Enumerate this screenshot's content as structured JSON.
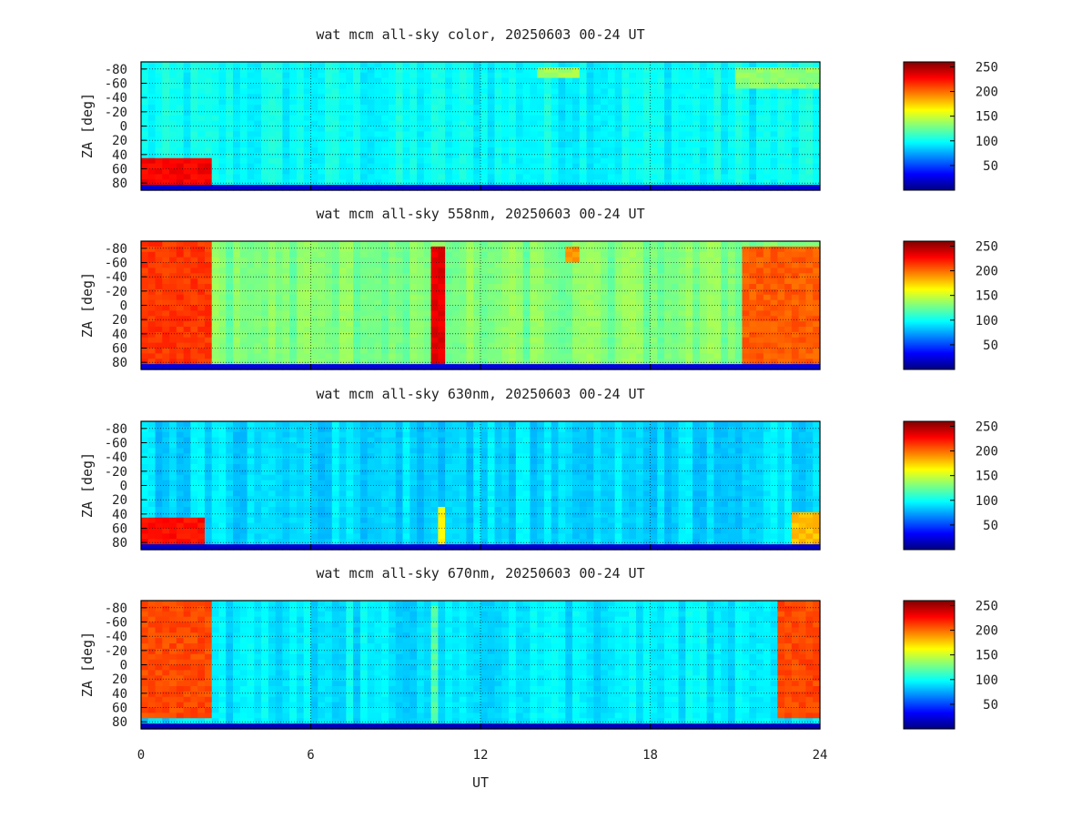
{
  "colormap": [
    "#00007f",
    "#0000ff",
    "#007fff",
    "#00ffff",
    "#7fff7f",
    "#ffff00",
    "#ff7f00",
    "#ff0000",
    "#7f0000"
  ],
  "chart_data": {
    "type": "heatmap",
    "xlabel": "UT",
    "ylabel": "ZA [deg]",
    "x_ticks": [
      "0",
      "6",
      "12",
      "18",
      "24"
    ],
    "xlim": [
      0,
      24
    ],
    "ylim": [
      -90,
      90
    ],
    "y_ticks": [
      "-80",
      "-60",
      "-40",
      "-20",
      "0",
      "20",
      "40",
      "60",
      "80"
    ],
    "colorbar_ticks": [
      "250",
      "200",
      "150",
      "100",
      "50"
    ],
    "clim": [
      0,
      260
    ],
    "grid": true,
    "panels": [
      {
        "title": "wat mcm all-sky color, 20250603 00-24 UT",
        "base": 98,
        "edge_dark": 20,
        "hotspots": [
          {
            "t": [
              0,
              2.4
            ],
            "za": [
              48,
              80
            ],
            "v": 235
          },
          {
            "t": [
              21,
              24
            ],
            "za": [
              -86,
              -50
            ],
            "v": 140
          },
          {
            "t": [
              14,
              15.6
            ],
            "za": [
              -86,
              -70
            ],
            "v": 145
          }
        ]
      },
      {
        "title": "wat mcm all-sky 558nm, 20250603 00-24 UT",
        "base": 130,
        "edge_dark": 25,
        "hotspots": [
          {
            "t": [
              0,
              2.6
            ],
            "za": [
              -90,
              90
            ],
            "v": 220
          },
          {
            "t": [
              10.3,
              10.7
            ],
            "za": [
              -85,
              80
            ],
            "v": 240
          },
          {
            "t": [
              21.3,
              24
            ],
            "za": [
              -86,
              80
            ],
            "v": 210
          },
          {
            "t": [
              15.1,
              15.6
            ],
            "za": [
              -85,
              -60
            ],
            "v": 195
          }
        ]
      },
      {
        "title": "wat mcm all-sky 630nm, 20250603 00-24 UT",
        "base": 88,
        "edge_dark": 20,
        "hotspots": [
          {
            "t": [
              0,
              2.3
            ],
            "za": [
              48,
              80
            ],
            "v": 230
          },
          {
            "t": [
              10.4,
              10.7
            ],
            "za": [
              30,
              80
            ],
            "v": 170
          },
          {
            "t": [
              23,
              24
            ],
            "za": [
              40,
              80
            ],
            "v": 185
          }
        ]
      },
      {
        "title": "wat mcm all-sky 670nm, 20250603 00-24 UT",
        "base": 92,
        "edge_dark": 15,
        "hotspots": [
          {
            "t": [
              0,
              2.6
            ],
            "za": [
              -90,
              75
            ],
            "v": 215
          },
          {
            "t": [
              22.6,
              24
            ],
            "za": [
              -90,
              75
            ],
            "v": 215
          },
          {
            "t": [
              10.3,
              10.6
            ],
            "za": [
              -85,
              80
            ],
            "v": 125
          }
        ]
      }
    ]
  }
}
